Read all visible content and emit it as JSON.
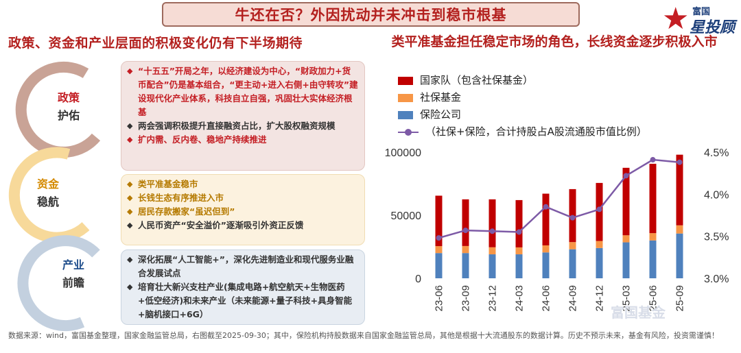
{
  "header": {
    "title": "牛还在否？外因扰动并未冲击到稳市根基"
  },
  "brand": {
    "small": "富国",
    "big": "星投顾"
  },
  "left": {
    "title": "政策、资金和产业层面的积极变化仍有下半场期待",
    "arcs": [
      {
        "l1": "政策",
        "l2": "护佑",
        "color": "#c9a396",
        "c1": "#b3201e"
      },
      {
        "l1": "资金",
        "l2": "稳航",
        "color": "#f7d99a",
        "c1": "#d48a00"
      },
      {
        "l1": "产业",
        "l2": "前瞻",
        "color": "#c3d0df",
        "c1": "#1f4e8c"
      }
    ],
    "box1": [
      {
        "text": "“十五五”开局之年，以经济建设为中心，“财政加力+货币配合”仍是基本组合，“更主动+进入右侧+由守转攻”建设现代化产业体系，科技自立自强，巩固壮大实体经济根基",
        "cls": "red"
      },
      {
        "text": "两会强调积极提升直接融资占比，扩大股权融资规模",
        "cls": "dark"
      },
      {
        "text": "扩内需、反内卷、稳地产持续推进",
        "cls": "red"
      }
    ],
    "box2": [
      {
        "text": "类平准基金稳市",
        "cls": "gold"
      },
      {
        "text": "长钱生态有序推进入市",
        "cls": "gold"
      },
      {
        "text": "居民存款搬家“虽迟但到”",
        "cls": "gold"
      },
      {
        "text": "人民币资产“安全溢价”逐渐吸引外资正反馈",
        "cls": "dark"
      }
    ],
    "box3": [
      {
        "text": "深化拓展“人工智能+”，深化先进制造业和现代服务业融合发展试点",
        "cls": "dark"
      },
      {
        "text": "培育壮大新兴支柱产业(集成电路+航空航天+生物医药+低空经济)和未来产业（未来能源+量子科技+具身智能+脑机接口+6G）",
        "cls": "dark"
      }
    ]
  },
  "right": {
    "title": "类平准基金担任稳定市场的角色，长线资金逐步积极入市"
  },
  "footer": "数据来源：wind，富国基金整理，国家金融监管总局，右图截至2025-09-30；其中，保险机构持股数据来自国家金融监管总局，其他是根据十大流通股东的数据计算。历史不预示未来，基金有风险，投资需谨慎！",
  "watermark": "富国基金",
  "chart_data": {
    "type": "bar",
    "categories": [
      "23-06",
      "23-09",
      "23-12",
      "24-03",
      "24-06",
      "24-09",
      "24-12",
      "25-03",
      "25-06",
      "25-09"
    ],
    "series": [
      {
        "name": "国家队（包含社保基金）",
        "color": "#c00000",
        "values": [
          40000,
          37000,
          38000,
          37500,
          41000,
          42000,
          46000,
          53500,
          55000,
          56000
        ]
      },
      {
        "name": "社保基金",
        "color": "#f79646",
        "values": [
          5500,
          5600,
          5600,
          5500,
          5600,
          5700,
          5600,
          5600,
          5800,
          6500
        ]
      },
      {
        "name": "保险公司",
        "color": "#4f81bd",
        "values": [
          20000,
          20000,
          19000,
          19000,
          20500,
          23000,
          24000,
          28500,
          30000,
          35500
        ]
      }
    ],
    "line": {
      "name": "（社保+保险，合计持股占A股流通股市值比例）",
      "color": "#7d5aa6",
      "values": [
        3.48,
        3.57,
        3.56,
        3.55,
        3.85,
        3.72,
        3.82,
        4.22,
        4.41,
        4.38
      ]
    },
    "yleft": {
      "ticks": [
        0,
        50000,
        100000
      ],
      "labels": [
        "0",
        "50000",
        "100000"
      ],
      "min": 0,
      "max": 100000
    },
    "yright": {
      "ticks": [
        3.0,
        3.5,
        4.0,
        4.5
      ],
      "labels": [
        "3.0%",
        "3.5%",
        "4.0%",
        "4.5%"
      ],
      "min": 3.0,
      "max": 4.5
    }
  }
}
